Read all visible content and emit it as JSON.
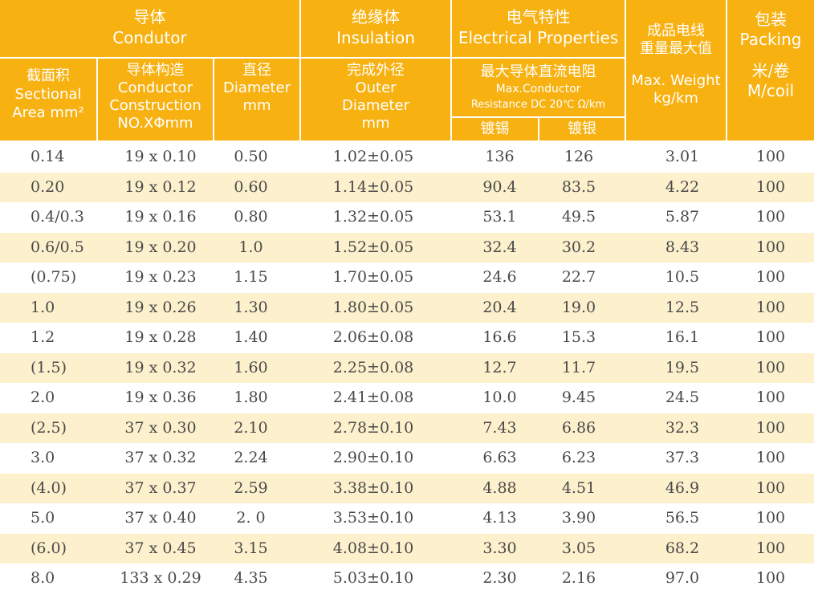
{
  "header": {
    "conductor_group": [
      "导体",
      "Condutor"
    ],
    "insulation_group": [
      "绝缘体",
      "Insulation"
    ],
    "electrical_group": [
      "电气特性",
      "Electrical Properties"
    ],
    "weight": [
      "成品电线",
      "重量最大值",
      "Max. Weight",
      "kg/km"
    ],
    "packing": [
      "包装",
      "Packing",
      "米/卷",
      "M/coil"
    ],
    "sectional_area": [
      "截面积",
      "Sectional",
      "Area mm²"
    ],
    "construction": [
      "导体构造",
      "Conductor",
      "Construction",
      "NO.XΦmm"
    ],
    "diameter": [
      "直径",
      "Diameter",
      "mm"
    ],
    "outer_diameter": [
      "完成外径",
      "Outer",
      "Diameter",
      "mm"
    ],
    "resistance": [
      "最大导体直流电阻",
      "Max.Conductor",
      "Resistance DC 20℃   Ω/km"
    ],
    "tinned": "镀锡",
    "silvered": "镀银"
  },
  "rows": [
    {
      "area": "0.14",
      "construction": "19 x 0.10",
      "diameter": "0.50",
      "outer": "1.02±0.05",
      "tinned": "136",
      "silvered": "126",
      "weight": "3.01",
      "packing": "100"
    },
    {
      "area": "0.20",
      "construction": "19 x 0.12",
      "diameter": "0.60",
      "outer": "1.14±0.05",
      "tinned": "90.4",
      "silvered": "83.5",
      "weight": "4.22",
      "packing": "100"
    },
    {
      "area": "0.4/0.3",
      "construction": "19 x 0.16",
      "diameter": "0.80",
      "outer": "1.32±0.05",
      "tinned": "53.1",
      "silvered": "49.5",
      "weight": "5.87",
      "packing": "100"
    },
    {
      "area": "0.6/0.5",
      "construction": "19 x 0.20",
      "diameter": "1.0",
      "outer": "1.52±0.05",
      "tinned": "32.4",
      "silvered": "30.2",
      "weight": "8.43",
      "packing": "100"
    },
    {
      "area": "(0.75)",
      "construction": "19 x 0.23",
      "diameter": "1.15",
      "outer": "1.70±0.05",
      "tinned": "24.6",
      "silvered": "22.7",
      "weight": "10.5",
      "packing": "100"
    },
    {
      "area": "1.0",
      "construction": "19 x 0.26",
      "diameter": "1.30",
      "outer": "1.80±0.05",
      "tinned": "20.4",
      "silvered": "19.0",
      "weight": "12.5",
      "packing": "100"
    },
    {
      "area": "1.2",
      "construction": "19 x 0.28",
      "diameter": "1.40",
      "outer": "2.06±0.08",
      "tinned": "16.6",
      "silvered": "15.3",
      "weight": "16.1",
      "packing": "100"
    },
    {
      "area": "(1.5)",
      "construction": "19 x 0.32",
      "diameter": "1.60",
      "outer": "2.25±0.08",
      "tinned": "12.7",
      "silvered": "11.7",
      "weight": "19.5",
      "packing": "100"
    },
    {
      "area": "2.0",
      "construction": "19 x 0.36",
      "diameter": "1.80",
      "outer": "2.41±0.08",
      "tinned": "10.0",
      "silvered": "9.45",
      "weight": "24.5",
      "packing": "100"
    },
    {
      "area": "(2.5)",
      "construction": "37 x 0.30",
      "diameter": "2.10",
      "outer": "2.78±0.10",
      "tinned": "7.43",
      "silvered": "6.86",
      "weight": "32.3",
      "packing": "100"
    },
    {
      "area": "3.0",
      "construction": "37 x 0.32",
      "diameter": "2.24",
      "outer": "2.90±0.10",
      "tinned": "6.63",
      "silvered": "6.23",
      "weight": "37.3",
      "packing": "100"
    },
    {
      "area": "(4.0)",
      "construction": "37 x 0.37",
      "diameter": "2.59",
      "outer": "3.38±0.10",
      "tinned": "4.88",
      "silvered": "4.51",
      "weight": "46.9",
      "packing": "100"
    },
    {
      "area": "5.0",
      "construction": "37 x 0.40",
      "diameter": "2. 0",
      "outer": "3.53±0.10",
      "tinned": "4.13",
      "silvered": "3.90",
      "weight": "56.5",
      "packing": "100"
    },
    {
      "area": "(6.0)",
      "construction": "37 x 0.45",
      "diameter": "3.15",
      "outer": "4.08±0.10",
      "tinned": "3.30",
      "silvered": "3.05",
      "weight": "68.2",
      "packing": "100"
    },
    {
      "area": "8.0",
      "construction": "133 x 0.29",
      "diameter": "4.35",
      "outer": "5.03±0.10",
      "tinned": "2.30",
      "silvered": "2.16",
      "weight": "97.0",
      "packing": "100"
    }
  ]
}
